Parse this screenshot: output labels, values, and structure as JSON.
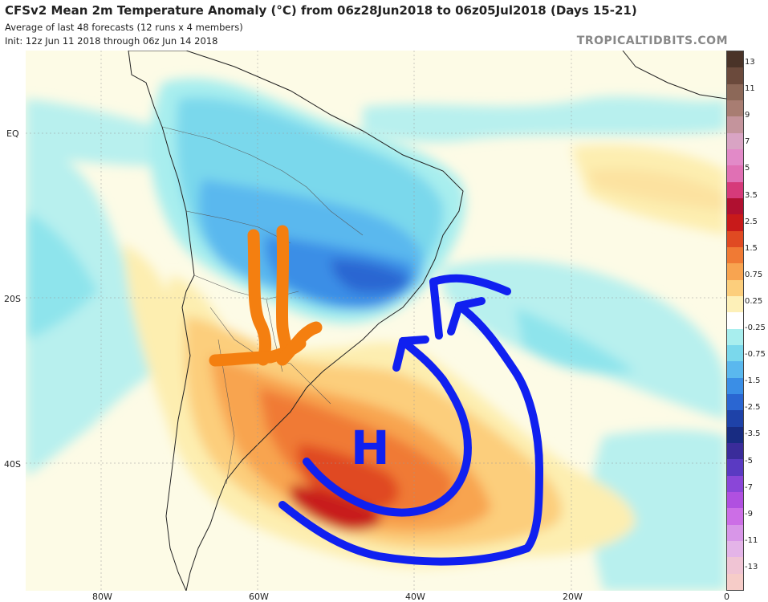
{
  "header": {
    "title": "CFSv2 Mean 2m Temperature Anomaly (°C) from 06z28Jun2018 to 06z05Jul2018 (Days 15-21)",
    "subtitle_1": "Average of last 48 forecasts (12 runs x 4 members)",
    "subtitle_2": "Init: 12z Jun 11 2018 through 06z Jun 14 2018",
    "brand": "TROPICALTIDBITS.COM"
  },
  "map": {
    "lat_labels": [
      "EQ",
      "20S",
      "40S"
    ],
    "lon_labels": [
      "80W",
      "60W",
      "40W",
      "20W",
      "0"
    ],
    "annotation_letter": "H"
  },
  "colorbar": {
    "labels": [
      "13",
      "11",
      "9",
      "7",
      "5",
      "3.5",
      "2.5",
      "1.5",
      "0.75",
      "0.25",
      "-0.25",
      "-0.75",
      "-1.5",
      "-2.5",
      "-3.5",
      "-5",
      "-7",
      "-9",
      "-11",
      "-13"
    ],
    "colors": [
      "#4a3328",
      "#6b4a3c",
      "#8c6858",
      "#a87d72",
      "#c4949c",
      "#d9a4c4",
      "#e28ac8",
      "#e070b4",
      "#d63a7a",
      "#b01030",
      "#c81a1a",
      "#e04a22",
      "#f07a34",
      "#f8a450",
      "#fcce7c",
      "#fdf0b8",
      "#ffffff",
      "#a8eeee",
      "#7ad8ec",
      "#5ab8ee",
      "#3a8ee6",
      "#2a66d2",
      "#1e42a8",
      "#182c82",
      "#3a2c9a",
      "#5a3ac2",
      "#8a46d8",
      "#b050e0",
      "#cc6ee6",
      "#d896e8",
      "#e4b4e8",
      "#f0c4d4",
      "#f6ccc8"
    ]
  }
}
